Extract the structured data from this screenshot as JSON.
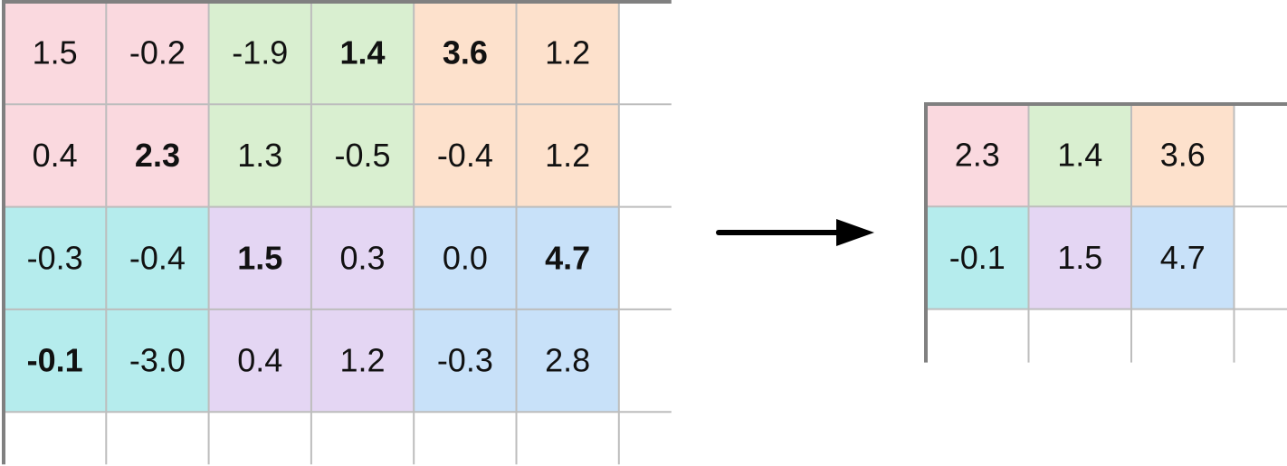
{
  "colors": {
    "pink": "#fad9df",
    "green": "#d9efd0",
    "orange": "#fde1cc",
    "cyan": "#b5eced",
    "purple": "#e4d6f3",
    "blue": "#c8e1f9",
    "grid_line": "#bdbdbd",
    "axis_line": "#808080",
    "arrow": "#000000",
    "text": "#111111"
  },
  "input_grid": {
    "rows": [
      [
        {
          "value": "1.5",
          "bold": false,
          "color": "pink"
        },
        {
          "value": "-0.2",
          "bold": false,
          "color": "pink"
        },
        {
          "value": "-1.9",
          "bold": false,
          "color": "green"
        },
        {
          "value": "1.4",
          "bold": true,
          "color": "green"
        },
        {
          "value": "3.6",
          "bold": true,
          "color": "orange"
        },
        {
          "value": "1.2",
          "bold": false,
          "color": "orange"
        }
      ],
      [
        {
          "value": "0.4",
          "bold": false,
          "color": "pink"
        },
        {
          "value": "2.3",
          "bold": true,
          "color": "pink"
        },
        {
          "value": "1.3",
          "bold": false,
          "color": "green"
        },
        {
          "value": "-0.5",
          "bold": false,
          "color": "green"
        },
        {
          "value": "-0.4",
          "bold": false,
          "color": "orange"
        },
        {
          "value": "1.2",
          "bold": false,
          "color": "orange"
        }
      ],
      [
        {
          "value": "-0.3",
          "bold": false,
          "color": "cyan"
        },
        {
          "value": "-0.4",
          "bold": false,
          "color": "cyan"
        },
        {
          "value": "1.5",
          "bold": true,
          "color": "purple"
        },
        {
          "value": "0.3",
          "bold": false,
          "color": "purple"
        },
        {
          "value": "0.0",
          "bold": false,
          "color": "blue"
        },
        {
          "value": "4.7",
          "bold": true,
          "color": "blue"
        }
      ],
      [
        {
          "value": "-0.1",
          "bold": true,
          "color": "cyan"
        },
        {
          "value": "-3.0",
          "bold": false,
          "color": "cyan"
        },
        {
          "value": "0.4",
          "bold": false,
          "color": "purple"
        },
        {
          "value": "1.2",
          "bold": false,
          "color": "purple"
        },
        {
          "value": "-0.3",
          "bold": false,
          "color": "blue"
        },
        {
          "value": "2.8",
          "bold": false,
          "color": "blue"
        }
      ]
    ]
  },
  "output_grid": {
    "rows": [
      [
        {
          "value": "2.3",
          "bold": false,
          "color": "pink"
        },
        {
          "value": "1.4",
          "bold": false,
          "color": "green"
        },
        {
          "value": "3.6",
          "bold": false,
          "color": "orange"
        }
      ],
      [
        {
          "value": "-0.1",
          "bold": false,
          "color": "cyan"
        },
        {
          "value": "1.5",
          "bold": false,
          "color": "purple"
        },
        {
          "value": "4.7",
          "bold": false,
          "color": "blue"
        }
      ]
    ]
  }
}
